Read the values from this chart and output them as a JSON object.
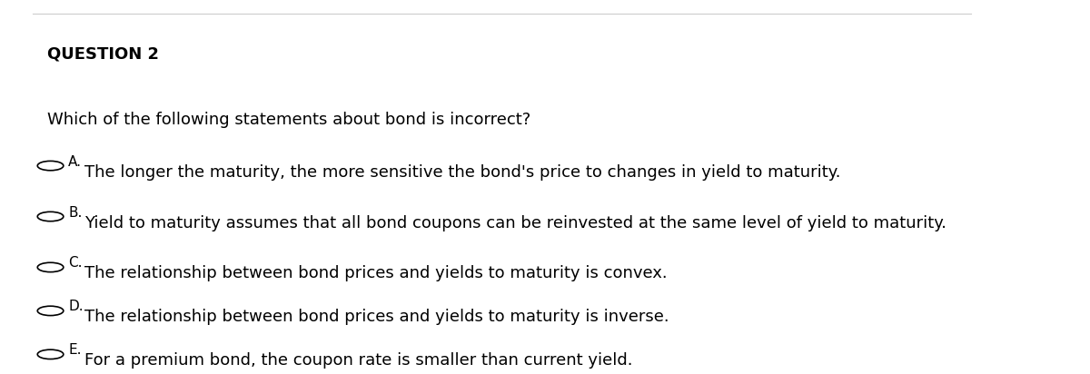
{
  "title": "QUESTION 2",
  "question": "Which of the following statements about bond is incorrect?",
  "options": [
    {
      "label": "A.",
      "text": "The longer the maturity, the more sensitive the bond's price to changes in yield to maturity."
    },
    {
      "label": "B.",
      "text": "Yield to maturity assumes that all bond coupons can be reinvested at the same level of yield to maturity."
    },
    {
      "label": "C.",
      "text": "The relationship between bond prices and yields to maturity is convex."
    },
    {
      "label": "D.",
      "text": "The relationship between bond prices and yields to maturity is inverse."
    },
    {
      "label": "E.",
      "text": "For a premium bond, the coupon rate is smaller than current yield."
    }
  ],
  "background_color": "#ffffff",
  "text_color": "#000000",
  "title_color": "#000000",
  "border_color": "#cccccc",
  "circle_color": "#000000",
  "title_fontsize": 13,
  "question_fontsize": 13,
  "option_label_fontsize": 11,
  "option_text_fontsize": 13,
  "fig_width": 12.0,
  "fig_height": 4.12,
  "dpi": 100
}
